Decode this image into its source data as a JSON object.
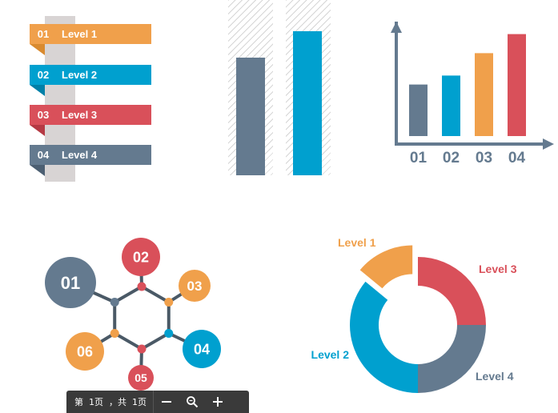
{
  "colors": {
    "orange": "#f0a04b",
    "blue": "#00a0cf",
    "red": "#d9505a",
    "slate": "#647a8f",
    "post": "#d8d4d4",
    "hatch": "#d6d6d6",
    "toolbar_bg": "#3a3a3a"
  },
  "ribbons": [
    {
      "num": "01",
      "label": "Level 1",
      "color": "#f0a04b",
      "fold": "#d98a2f"
    },
    {
      "num": "02",
      "label": "Level 2",
      "color": "#00a0cf",
      "fold": "#0080a8"
    },
    {
      "num": "03",
      "label": "Level 3",
      "color": "#d9505a",
      "fold": "#b53a44"
    },
    {
      "num": "04",
      "label": "Level 4",
      "color": "#647a8f",
      "fold": "#4c5f72"
    }
  ],
  "hatched_bars": {
    "scale_max": 100,
    "bars": [
      {
        "value": 67,
        "color": "#647a8f"
      },
      {
        "value": 82,
        "color": "#00a0cf"
      }
    ]
  },
  "chart_data": {
    "type": "bar",
    "categories": [
      "01",
      "02",
      "03",
      "04"
    ],
    "values": [
      46,
      54,
      74,
      91
    ],
    "colors": [
      "#647a8f",
      "#00a0cf",
      "#f0a04b",
      "#d9505a"
    ],
    "ylim": [
      0,
      100
    ],
    "title": "",
    "xlabel": "",
    "ylabel": ""
  },
  "hexagon": {
    "nodes": [
      {
        "label": "01",
        "color": "#647a8f",
        "dot": "#647a8f"
      },
      {
        "label": "02",
        "color": "#d9505a",
        "dot": "#d9505a"
      },
      {
        "label": "03",
        "color": "#f0a04b",
        "dot": "#f0a04b"
      },
      {
        "label": "04",
        "color": "#00a0cf",
        "dot": "#00a0cf"
      },
      {
        "label": "05",
        "color": "#d9505a",
        "dot": "#d9505a"
      },
      {
        "label": "06",
        "color": "#f0a04b",
        "dot": "#f0a04b"
      }
    ]
  },
  "donut": {
    "segments": [
      {
        "label": "Level 3",
        "value": 25,
        "color": "#d9505a"
      },
      {
        "label": "Level 4",
        "value": 25,
        "color": "#647a8f"
      },
      {
        "label": "Level 2",
        "value": 36,
        "color": "#00a0cf"
      },
      {
        "label": "Level 1",
        "value": 14,
        "color": "#f0a04b",
        "exploded": true
      }
    ]
  },
  "toolbar": {
    "page_text": "第  1页  ，共  1页",
    "zoom_out_icon": "minus-icon",
    "zoom_icon": "magnifier-icon",
    "zoom_in_icon": "plus-icon"
  }
}
